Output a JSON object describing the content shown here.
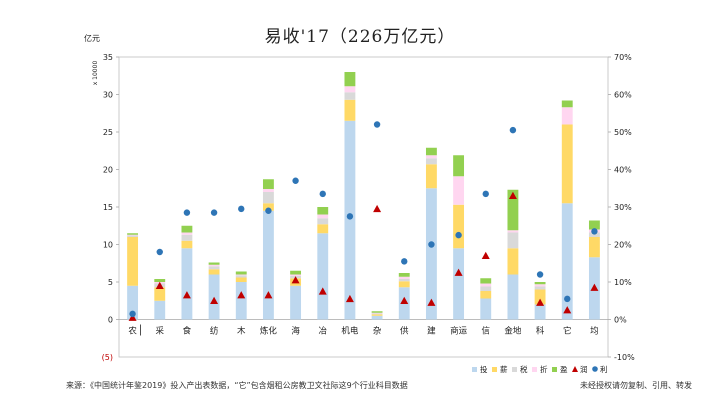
{
  "chart_data": {
    "type": "bar",
    "title": "易收'17（226万亿元）",
    "unit_label": "亿元",
    "multiplier_label": "x 10000",
    "ylim": [
      -5,
      35
    ],
    "y_ticks": [
      35,
      30,
      25,
      20,
      15,
      10,
      5,
      0
    ],
    "y_tick_labels": [
      "35",
      "30",
      "25",
      "20",
      "15",
      "10",
      "5",
      "0"
    ],
    "y_neg_label": "(5)",
    "y2lim": [
      -10,
      70
    ],
    "y2_ticks": [
      70,
      60,
      50,
      40,
      30,
      20,
      10,
      0,
      -10
    ],
    "y2_tick_labels": [
      "70%",
      "60%",
      "50%",
      "40%",
      "30%",
      "20%",
      "10%",
      "0%",
      "-10%"
    ],
    "categories": [
      "农",
      "采",
      "食",
      "纺",
      "木",
      "炼化",
      "海",
      "冶",
      "机电",
      "杂",
      "供",
      "建",
      "商运",
      "信",
      "金地",
      "科",
      "它",
      "均"
    ],
    "series": [
      {
        "name": "投",
        "color": "#bdd7ee",
        "values": [
          4.5,
          2.5,
          9.5,
          6.0,
          5.0,
          14.5,
          4.5,
          11.5,
          26.5,
          0.5,
          4.3,
          17.5,
          9.5,
          2.8,
          6.0,
          2.0,
          15.5,
          8.3
        ]
      },
      {
        "name": "薪",
        "color": "#ffd966",
        "values": [
          6.5,
          1.8,
          1.0,
          0.7,
          0.6,
          1.0,
          1.0,
          1.2,
          2.8,
          0.2,
          0.8,
          3.2,
          5.8,
          1.0,
          3.5,
          2.0,
          10.5,
          2.7
        ]
      },
      {
        "name": "税",
        "color": "#d9d9d9",
        "values": [
          0.2,
          0.5,
          0.8,
          0.4,
          0.3,
          1.5,
          0.3,
          0.8,
          1.0,
          0.1,
          0.3,
          0.8,
          0.0,
          0.6,
          2.1,
          0.4,
          0.0,
          0.6
        ]
      },
      {
        "name": "折",
        "color": "#ffd6f0",
        "values": [
          0.1,
          0.2,
          0.3,
          0.2,
          0.1,
          0.4,
          0.2,
          0.5,
          0.8,
          0.1,
          0.3,
          0.4,
          3.8,
          0.4,
          0.3,
          0.3,
          2.3,
          0.4
        ]
      },
      {
        "name": "盈",
        "color": "#92d050",
        "values": [
          0.2,
          0.4,
          0.9,
          0.3,
          0.4,
          1.3,
          0.5,
          1.0,
          1.9,
          0.2,
          0.5,
          1.0,
          2.8,
          0.7,
          5.4,
          0.3,
          0.9,
          1.2
        ]
      }
    ],
    "line_markers": [
      {
        "name": "润",
        "marker": "triangle",
        "axis": "right",
        "color": "#c00000",
        "values": [
          0.5,
          9.0,
          6.5,
          5.0,
          6.5,
          6.5,
          10.5,
          7.5,
          5.5,
          29.5,
          5.0,
          4.5,
          12.5,
          17.0,
          33.0,
          4.5,
          2.5,
          8.5
        ]
      },
      {
        "name": "利",
        "marker": "dot",
        "axis": "right",
        "color": "#2e75b6",
        "values": [
          1.5,
          18.0,
          28.5,
          28.5,
          29.5,
          29.0,
          37.0,
          33.5,
          27.5,
          52.0,
          15.5,
          20.0,
          22.5,
          33.5,
          50.5,
          12.0,
          5.5,
          23.5
        ]
      }
    ],
    "legend_position": "bottom-right",
    "legend": [
      "投",
      "薪",
      "税",
      "折",
      "盈",
      "润",
      "利"
    ]
  },
  "source_note": "来源：《中国统计年鉴2019》投入产出表数据，“它”包含烟租公房教卫文社际这9个行业科目数据",
  "rights_note": "未经授权请勿复制、引用、转发"
}
